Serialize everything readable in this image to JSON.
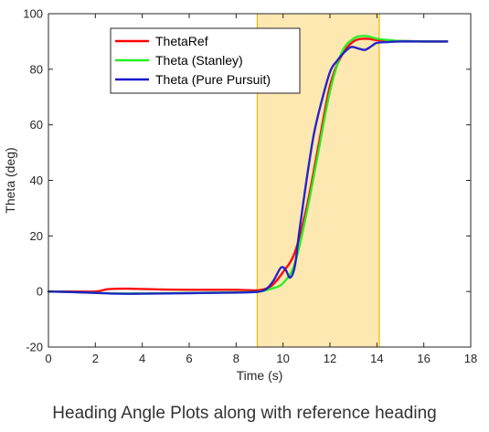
{
  "caption": "Heading Angle Plots along with reference heading",
  "chart_data": {
    "type": "line",
    "xlabel": "Time (s)",
    "ylabel": "Theta (deg)",
    "xlim": [
      0,
      18
    ],
    "ylim": [
      -20,
      100
    ],
    "xticks": [
      0,
      2,
      4,
      6,
      8,
      10,
      12,
      14,
      16,
      18
    ],
    "yticks": [
      -20,
      0,
      20,
      40,
      60,
      80,
      100
    ],
    "grid": false,
    "legend": "top-left",
    "highlight_region": {
      "x": [
        8.9,
        14.1
      ],
      "color": "#fde8b1"
    },
    "series": [
      {
        "name": "ThetaRef",
        "color": "#ff0000",
        "x": [
          0,
          1,
          2,
          2.5,
          3,
          3.5,
          4,
          5,
          6,
          7,
          8,
          8.5,
          9,
          9.5,
          10,
          10.5,
          11,
          11.5,
          12,
          12.5,
          13,
          13.5,
          14,
          14.5,
          15,
          16,
          17
        ],
        "y": [
          0,
          0,
          0,
          0.8,
          1,
          1,
          0.9,
          0.7,
          0.6,
          0.6,
          0.6,
          0.5,
          0.5,
          2,
          7,
          14,
          30,
          52,
          74,
          85,
          90,
          91,
          90.5,
          90.3,
          90.2,
          90,
          90
        ]
      },
      {
        "name": "Theta (Stanley)",
        "color": "#22ee22",
        "x": [
          0,
          1,
          2,
          3,
          4,
          5,
          6,
          7,
          8,
          8.5,
          9,
          9.5,
          10,
          10.5,
          11,
          11.5,
          12,
          12.5,
          13,
          13.5,
          14,
          14.5,
          15,
          16,
          17
        ],
        "y": [
          0,
          -0.2,
          -0.5,
          -0.7,
          -0.7,
          -0.6,
          -0.5,
          -0.4,
          -0.3,
          -0.2,
          0,
          1,
          3,
          10,
          28,
          50,
          72,
          86,
          91,
          92,
          91,
          90.5,
          90.2,
          90,
          90
        ]
      },
      {
        "name": "Theta (Pure Pursuit)",
        "color": "#1a1acc",
        "x": [
          0,
          1,
          2,
          3,
          4,
          5,
          6,
          7,
          8,
          8.5,
          9,
          9.3,
          9.6,
          9.9,
          10.1,
          10.3,
          10.5,
          10.7,
          11,
          11.3,
          11.6,
          12,
          12.3,
          12.6,
          12.9,
          13.2,
          13.5,
          13.8,
          14,
          14.5,
          15,
          16,
          17
        ],
        "y": [
          0,
          -0.2,
          -0.5,
          -0.8,
          -0.8,
          -0.7,
          -0.6,
          -0.5,
          -0.4,
          -0.3,
          0,
          1,
          4,
          8.5,
          8,
          5,
          9,
          22,
          40,
          56,
          67,
          79,
          83,
          86,
          88,
          87.5,
          87,
          88.5,
          89.5,
          89.8,
          90,
          90,
          90
        ]
      }
    ]
  }
}
